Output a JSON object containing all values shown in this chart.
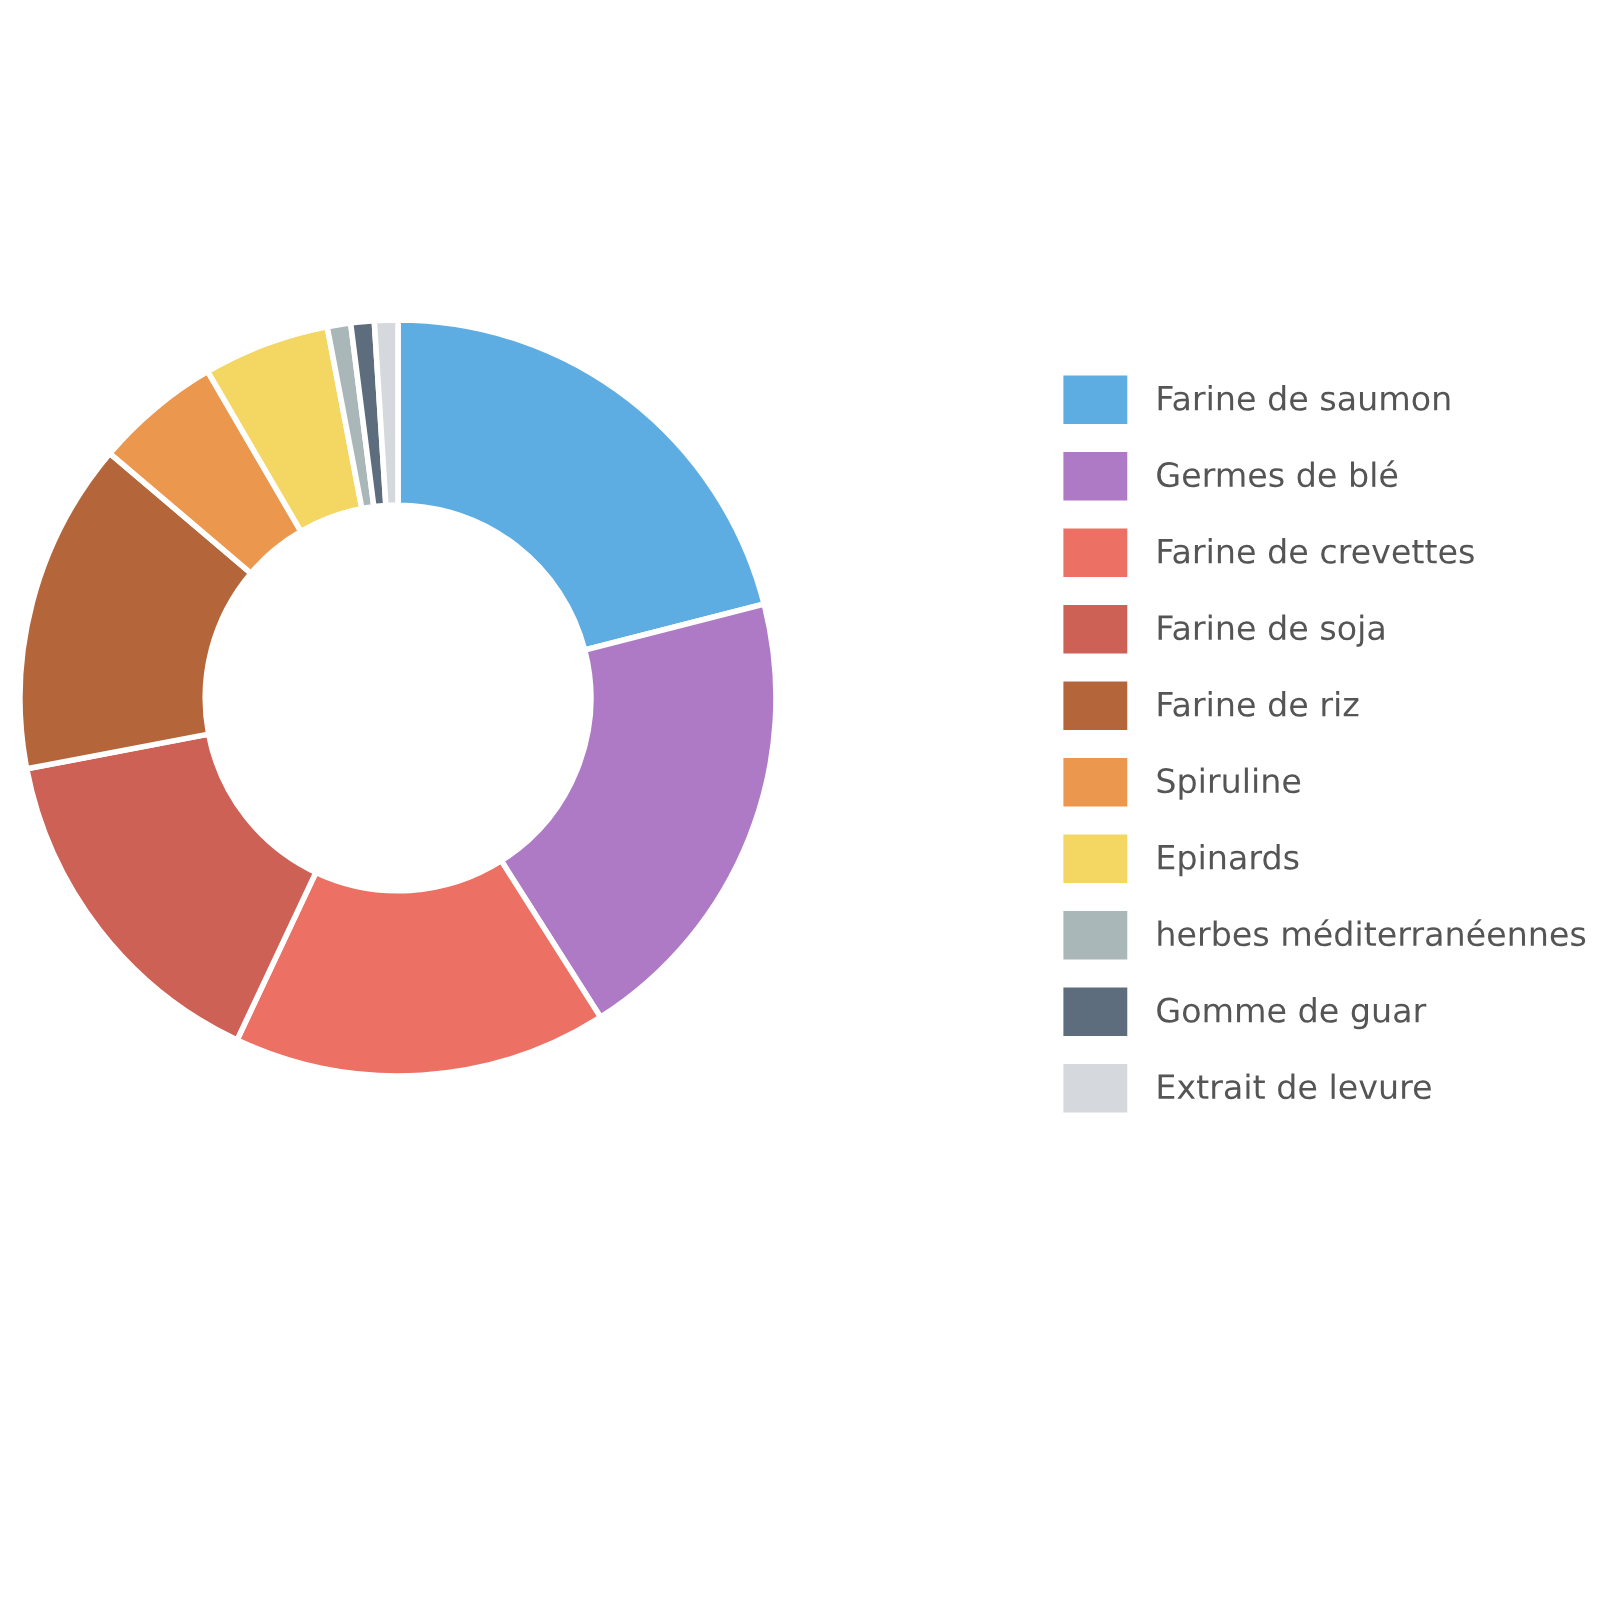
{
  "chart_data": {
    "type": "donut",
    "categories": [
      "Farine de saumon",
      "Germes de blé",
      "Farine de crevettes",
      "Farine de soja",
      "Farine de riz",
      "Spiruline",
      "Epinards",
      "herbes méditerranéennes",
      "Gomme de guar",
      "Extrait de levure"
    ],
    "values": [
      21,
      20,
      16,
      15,
      14.2,
      5.4,
      5.4,
      1,
      1,
      1
    ],
    "colors": [
      "#5dade2",
      "#af7ac5",
      "#ec7063",
      "#cd6155",
      "#b5653a",
      "#eb984e",
      "#f4d662",
      "#aab7b8",
      "#5d6d7e",
      "#d5d8dc"
    ],
    "legend": "right"
  }
}
